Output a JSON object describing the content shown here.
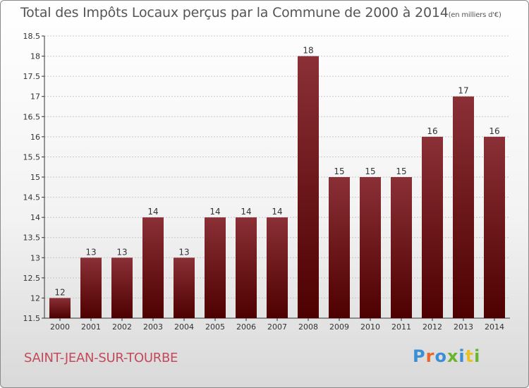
{
  "header": {
    "title": "Total des Impôts Locaux perçus par la Commune de 2000 à 2014",
    "unit": "(en milliers d'€)"
  },
  "footer": {
    "commune": "SAINT-JEAN-SUR-TOURBE",
    "logo_text": "Proxiti",
    "logo_colors": [
      "#3b8fd6",
      "#e8662a",
      "#3b8fd6",
      "#6ab52e",
      "#3b8fd6",
      "#e8c22a",
      "#6ab52e"
    ]
  },
  "colors": {
    "bar_top": "#8a3036",
    "bar_bottom": "#4e0000",
    "axis": "#333333",
    "grid": "#c8c8c8",
    "label": "#333333"
  },
  "chart_data": {
    "type": "bar",
    "title": "Total des Impôts Locaux perçus par la Commune de 2000 à 2014",
    "xlabel": "",
    "ylabel": "(en milliers d'€)",
    "categories": [
      "2000",
      "2001",
      "2002",
      "2003",
      "2004",
      "2005",
      "2006",
      "2007",
      "2008",
      "2009",
      "2010",
      "2011",
      "2012",
      "2013",
      "2014"
    ],
    "values": [
      12,
      13,
      13,
      14,
      13,
      14,
      14,
      14,
      18,
      15,
      15,
      15,
      16,
      17,
      16
    ],
    "data_labels": [
      "12",
      "13",
      "13",
      "14",
      "13",
      "14",
      "14",
      "14",
      "18",
      "15",
      "15",
      "15",
      "16",
      "17",
      "16"
    ],
    "ylim": [
      11.5,
      18.5
    ],
    "yticks": [
      11.5,
      12,
      12.5,
      13,
      13.5,
      14,
      14.5,
      15,
      15.5,
      16,
      16.5,
      17,
      17.5,
      18,
      18.5
    ],
    "ytick_labels": [
      "11.5",
      "12",
      "12.5",
      "13",
      "13.5",
      "14",
      "14.5",
      "15",
      "15.5",
      "16",
      "16.5",
      "17",
      "17.5",
      "18",
      "18.5"
    ],
    "grid": true
  }
}
